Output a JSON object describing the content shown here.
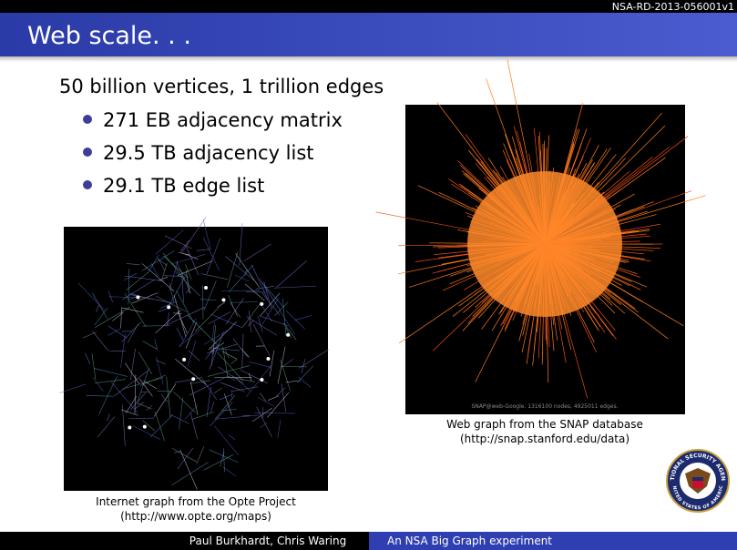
{
  "header": {
    "doc_id": "NSA-RD-2013-056001v1",
    "title": "Web scale. . ."
  },
  "body": {
    "lead": "50 billion vertices, 1 trillion edges",
    "bullets": [
      "271 EB adjacency matrix",
      "29.5 TB adjacency list",
      "29.1 TB edge list"
    ]
  },
  "figures": [
    {
      "caption": [
        "Internet graph from the Opte Project",
        "(http://www.opte.org/maps)"
      ]
    },
    {
      "caption": [
        "Web graph from the SNAP database",
        "(http://snap.stanford.edu/data)"
      ],
      "watermark": "SNAP@web-Google. 1316100 nodes, 4925011 edges."
    }
  ],
  "seal": {
    "top": "NATIONAL SECURITY AGENCY",
    "bottom": "UNITED STATES OF AMERICA"
  },
  "footer": {
    "authors": "Paul Burkhardt, Chris Waring",
    "project": "An NSA Big Graph experiment"
  }
}
